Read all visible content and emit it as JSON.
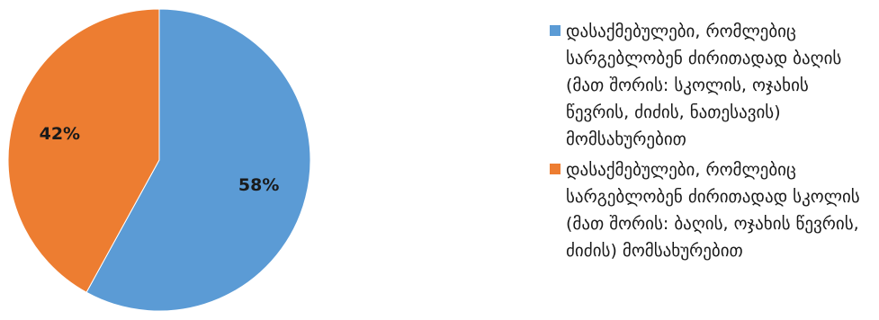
{
  "chart_data": {
    "type": "pie",
    "title": "",
    "legend_position": "right",
    "slices": [
      {
        "label": "დასაქმებულები, რომლებიც სარგებლობენ ძირითადად ბაღის (მათ შორის: სკოლის, ოჯახის წევრის, ძიძის, ნათესავის) მომსახურებით",
        "value": 58,
        "display": "58%",
        "color": "#5b9bd5"
      },
      {
        "label": "დასაქმებულები, რომლებიც სარგებლობენ ძირითადად სკოლის (მათ შორის: ბაღის, ოჯახის წევრის, ძიძის) მომსახურებით",
        "value": 42,
        "display": "42%",
        "color": "#ed7d31"
      }
    ]
  }
}
